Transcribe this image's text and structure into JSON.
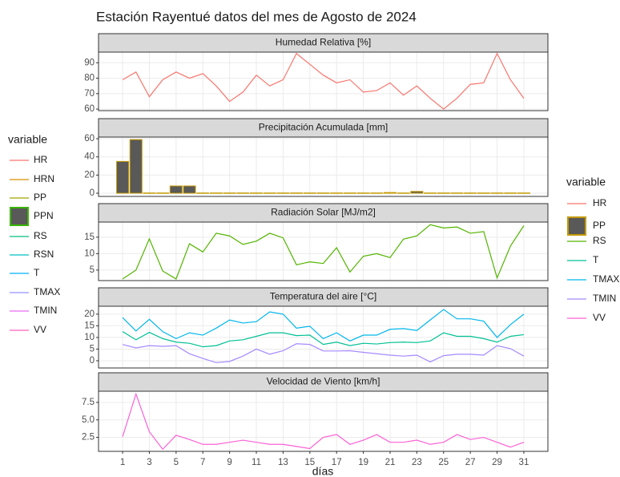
{
  "title": "Estación Rayentué datos del mes de Agosto de 2024",
  "x_label": "días",
  "x": [
    1,
    2,
    3,
    4,
    5,
    6,
    7,
    8,
    9,
    10,
    11,
    12,
    13,
    14,
    15,
    16,
    17,
    18,
    19,
    20,
    21,
    22,
    23,
    24,
    25,
    26,
    27,
    28,
    29,
    30,
    31
  ],
  "xlim": [
    -0.8,
    32.8
  ],
  "xticks": [
    1,
    3,
    5,
    7,
    9,
    11,
    13,
    15,
    17,
    19,
    21,
    23,
    25,
    27,
    29,
    31
  ],
  "grid": true,
  "left_legend": {
    "title": "variable",
    "items": [
      {
        "name": "HR",
        "color": "#F8766D"
      },
      {
        "name": "HRN",
        "color": "#D89000"
      },
      {
        "name": "PP",
        "color": "#A3A500"
      },
      {
        "name": "PPN",
        "color": "#39B600",
        "key": "box",
        "fill": "#595959"
      },
      {
        "name": "RS",
        "color": "#00BF7D"
      },
      {
        "name": "RSN",
        "color": "#00BFC4"
      },
      {
        "name": "T",
        "color": "#00B0F6"
      },
      {
        "name": "TMAX",
        "color": "#9590FF"
      },
      {
        "name": "TMIN",
        "color": "#E76BF3"
      },
      {
        "name": "VV",
        "color": "#FF62BC"
      }
    ]
  },
  "right_legend_title": "variable",
  "chart_data": [
    {
      "type": "line",
      "title": "Humedad Relativa [%]",
      "ylim": [
        59,
        96.9
      ],
      "yticks": [
        60,
        70,
        80,
        90
      ],
      "series": [
        {
          "name": "HR",
          "color": "#F8766D",
          "values": [
            79,
            84,
            68,
            79,
            84,
            80,
            83,
            75,
            65,
            71,
            82,
            75,
            79,
            96,
            89,
            82,
            77,
            79,
            71,
            72,
            77,
            69,
            75,
            67,
            60,
            67,
            76,
            77,
            96,
            79,
            67
          ]
        }
      ]
    },
    {
      "type": "bar",
      "title": "Precipitación Acumulada [mm]",
      "ylim": [
        -3.5,
        61.8
      ],
      "yticks": [
        0,
        20,
        40,
        60
      ],
      "series": [
        {
          "name": "PP",
          "color": "#C49A00",
          "fill": "#595959",
          "key": "box",
          "values": [
            35,
            59,
            0.3,
            0.3,
            8,
            8,
            0.3,
            0.3,
            0.3,
            0.3,
            0.3,
            0.3,
            0.3,
            0.3,
            0.3,
            0.3,
            0.3,
            0.3,
            0.3,
            0.3,
            0.8,
            0.3,
            2,
            0.3,
            0.3,
            0.3,
            0.3,
            0.3,
            0.3,
            0.3,
            0.3
          ]
        }
      ]
    },
    {
      "type": "line",
      "title": "Radiación Solar [MJ/m2]",
      "ylim": [
        1.8,
        19.6
      ],
      "yticks": [
        5,
        10,
        15
      ],
      "series": [
        {
          "name": "RS",
          "color": "#53B400",
          "values": [
            2.3,
            5,
            14.5,
            4.7,
            2.3,
            13,
            10.5,
            16.2,
            15.4,
            12.8,
            13.8,
            16.2,
            14.8,
            6.6,
            7.5,
            7,
            11.8,
            4.4,
            9.2,
            10,
            8.8,
            14.4,
            15.4,
            18.8,
            17.8,
            18.1,
            16.2,
            16.7,
            2.6,
            12.3,
            18.5
          ]
        }
      ]
    },
    {
      "type": "line",
      "title": "Temperatura del aire [°C]",
      "ylim": [
        -3.1,
        23.4
      ],
      "yticks": [
        0,
        5,
        10,
        15,
        20
      ],
      "series": [
        {
          "name": "T",
          "color": "#00C094",
          "values": [
            12.5,
            9,
            12.2,
            9.5,
            8,
            7.5,
            6,
            6.5,
            8.5,
            9,
            10.5,
            12,
            12,
            10.8,
            11,
            7,
            8,
            6.5,
            7.5,
            7.2,
            7.8,
            8,
            7.8,
            8.5,
            12,
            10.5,
            10.5,
            9.5,
            8,
            10.5,
            11.2
          ]
        },
        {
          "name": "TMAX",
          "color": "#00B6EB",
          "values": [
            18.5,
            12.8,
            17.8,
            12.5,
            9.5,
            12,
            11,
            14,
            17.5,
            16.2,
            16.8,
            21,
            20,
            14,
            14.8,
            9.5,
            12,
            8.5,
            11,
            11,
            13.5,
            13.8,
            13,
            17.5,
            22,
            18,
            18,
            17,
            10,
            15.5,
            20
          ]
        },
        {
          "name": "TMIN",
          "color": "#A58AFF",
          "values": [
            7,
            5.5,
            6.5,
            6.2,
            6.5,
            3,
            1,
            -0.8,
            -0.3,
            2,
            5,
            2.8,
            4.3,
            7.3,
            7,
            4.2,
            4.2,
            4.3,
            3.6,
            3,
            2.4,
            2,
            2.4,
            -0.5,
            2.2,
            2.8,
            2.8,
            2.4,
            6.5,
            5.2,
            2
          ]
        }
      ]
    },
    {
      "type": "line",
      "title": "Velocidad de Viento [km/h]",
      "ylim": [
        0.5,
        9.1
      ],
      "yticks": [
        2.5,
        {
          "value": 5,
          "label": "5.0"
        },
        7.5
      ],
      "series": [
        {
          "name": "VV",
          "color": "#FB61D7",
          "values": [
            2.6,
            8.7,
            3.3,
            0.8,
            2.8,
            2.2,
            1.5,
            1.5,
            1.8,
            2.1,
            1.8,
            1.5,
            1.5,
            1.2,
            0.9,
            2.5,
            2.9,
            1.5,
            2.1,
            2.9,
            1.8,
            1.8,
            2.1,
            1.5,
            1.8,
            2.9,
            2.2,
            2.5,
            1.8,
            1.1,
            1.8
          ]
        }
      ]
    }
  ]
}
